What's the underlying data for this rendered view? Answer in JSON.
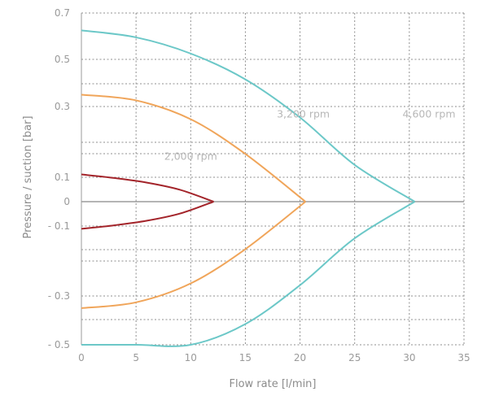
{
  "chart_data": {
    "type": "line",
    "xlabel": "Flow rate [l/min]",
    "ylabel": "Pressure / suction [bar]",
    "xlim": [
      0,
      35
    ],
    "ylim": [
      -0.5,
      0.7
    ],
    "x_ticks": [
      0,
      5,
      10,
      15,
      20,
      25,
      30,
      35
    ],
    "x_tick_labels": [
      "0",
      "5",
      "10",
      "15",
      "20",
      "25",
      "30",
      "35"
    ],
    "y_ticks": [
      0.7,
      0.5,
      0.3,
      0.1,
      0,
      -0.1,
      -0.3,
      -0.5
    ],
    "y_tick_labels": [
      "0.7",
      "0.5",
      "0.3",
      "0.1",
      "0",
      "- 0.1",
      "- 0.3",
      "- 0.5"
    ],
    "grid": true,
    "series": [
      {
        "name": "2,000 rpm",
        "color": "#a3242a",
        "upper": [
          [
            0,
            0.108
          ],
          [
            3,
            0.097
          ],
          [
            6,
            0.078
          ],
          [
            9,
            0.049
          ],
          [
            12.1,
            0
          ]
        ],
        "lower": [
          [
            0,
            -0.108
          ],
          [
            3,
            -0.097
          ],
          [
            6,
            -0.078
          ],
          [
            9,
            -0.049
          ],
          [
            12.1,
            0
          ]
        ]
      },
      {
        "name": "3,200 rpm",
        "color": "#f0a55a",
        "upper": [
          [
            0,
            0.35
          ],
          [
            5,
            0.326
          ],
          [
            10,
            0.264
          ],
          [
            15,
            0.166
          ],
          [
            20.5,
            0
          ]
        ],
        "lower": [
          [
            0,
            -0.35
          ],
          [
            5,
            -0.326
          ],
          [
            10,
            -0.264
          ],
          [
            15,
            -0.166
          ],
          [
            20.5,
            0
          ]
        ]
      },
      {
        "name": "4,600 rpm",
        "color": "#6cc8c8",
        "upper": [
          [
            0,
            0.625
          ],
          [
            5,
            0.595
          ],
          [
            10,
            0.525
          ],
          [
            15,
            0.415
          ],
          [
            20,
            0.269
          ],
          [
            25,
            0.135
          ],
          [
            30.5,
            0
          ]
        ],
        "lower": [
          [
            0,
            -0.625
          ],
          [
            5,
            -0.595
          ],
          [
            10,
            -0.525
          ],
          [
            15,
            -0.415
          ],
          [
            20,
            -0.269
          ],
          [
            25,
            -0.135
          ],
          [
            30.5,
            0
          ]
        ]
      }
    ],
    "annotations": [
      {
        "text": "2,000 rpm",
        "x": 10,
        "y": 0.14
      },
      {
        "text": "3,200 rpm",
        "x": 20.3,
        "y": 0.26
      },
      {
        "text": "4,600 rpm",
        "x": 31.8,
        "y": 0.26
      }
    ]
  }
}
